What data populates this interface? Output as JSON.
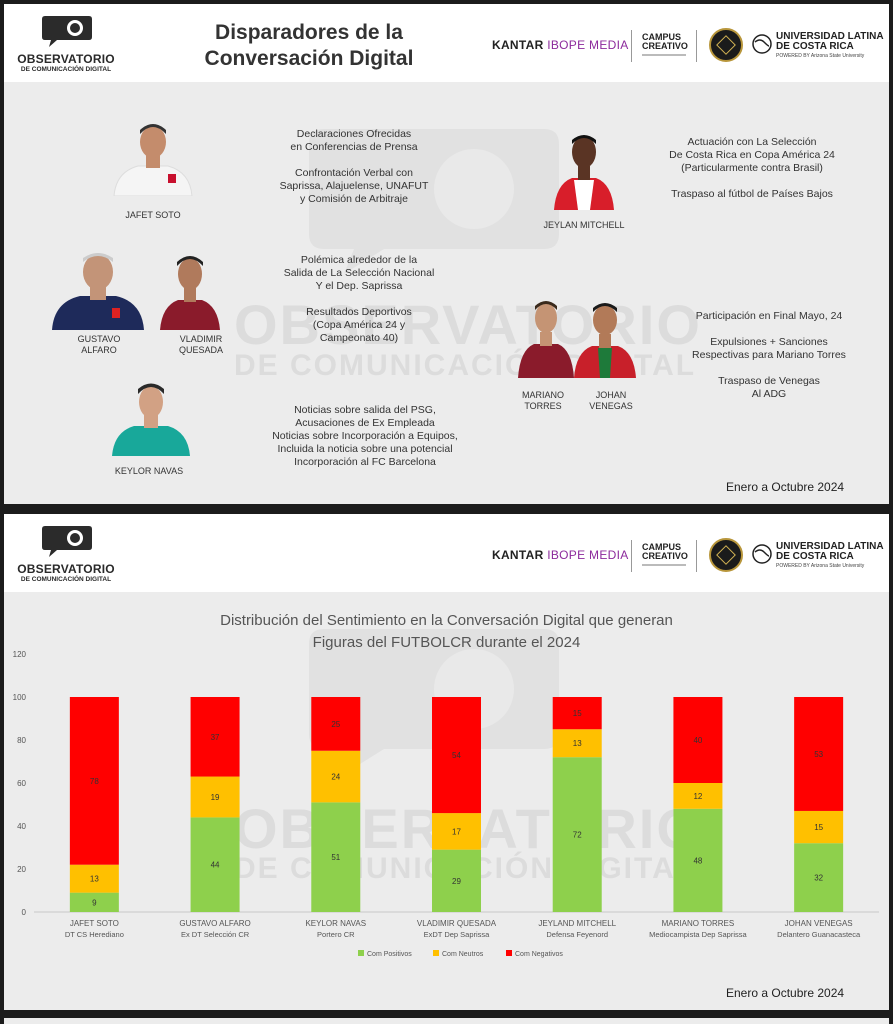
{
  "header": {
    "logo_line1": "OBSERVATORIO",
    "logo_line2": "DE COMUNICACIÓN DIGITAL",
    "title_line1": "Disparadores de la",
    "title_line2": "Conversación Digital",
    "kantar": "KANTAR",
    "ibope": "IBOPE MEDIA",
    "campus_line1": "CAMPUS",
    "campus_line2": "CREATIVO",
    "ulat_line1": "UNIVERSIDAD LATINA",
    "ulat_line2": "DE COSTA RICA",
    "ulat_sub": "POWERED BY Arizona State University"
  },
  "watermark": {
    "line1": "OBSERVATORIO",
    "line2": "DE COMUNICACIÓN DIGITAL"
  },
  "people": {
    "jafet": "JAFET\nSOTO",
    "gustavo": "GUSTAVO\nALFARO",
    "vladimir": "VLADIMIR\nQUESADA",
    "keylor": "KEYLOR\nNAVAS",
    "jeylan": "JEYLAN MITCHELL",
    "mariano": "MARIANO\nTORRES",
    "johan": "JOHAN\nVENEGAS"
  },
  "descriptions": {
    "jafet": "Declaraciones Ofrecidas\nen Conferencias de Prensa\n\nConfrontación Verbal con\nSaprissa, Alajuelense, UNAFUT\ny Comisión de Arbitraje",
    "gustavo_vladimir": "Polémica alrededor de la\nSalida de La Selección Nacional\nY el Dep. Saprissa\n\nResultados Deportivos\n(Copa América 24 y\nCampeonato 40)",
    "keylor": "Noticias sobre salida del PSG,\nAcusaciones de Ex Empleada\nNoticias sobre Incorporación a Equipos,\nIncluida la noticia sobre una potencial\nIncorporación al FC Barcelona",
    "jeylan": "Actuación con La Selección\nDe Costa Rica en Copa América 24\n(Particularmente contra Brasil)\n\nTraspaso al fútbol de Países Bajos",
    "mariano_johan": "Participación en Final Mayo, 24\n\nExpulsiones + Sanciones\nRespectivas para Mariano Torres\n\nTraspaso de Venegas\nAl ADG"
  },
  "period": "Enero a Octubre 2024",
  "chart_title_line1": "Distribución del Sentimiento en la Conversación Digital que generan",
  "chart_title_line2": "Figuras del FUTBOLCR  durante el 2024",
  "colors": {
    "positive": "#8ed04c",
    "neutral": "#ffc000",
    "negative": "#ff0000"
  },
  "chart_data": {
    "type": "bar",
    "stacked": true,
    "ylim": [
      0,
      120
    ],
    "yticks": [
      0,
      20,
      40,
      60,
      80,
      100,
      120
    ],
    "grid": false,
    "legend_position": "bottom",
    "categories": [
      {
        "name": "JAFET SOTO",
        "role": "DT CS Herediano"
      },
      {
        "name": "GUSTAVO ALFARO",
        "role": "Ex DT Selección CR"
      },
      {
        "name": "KEYLOR NAVAS",
        "role": "Portero CR"
      },
      {
        "name": "VLADIMIR QUESADA",
        "role": "ExDT Dep Saprissa"
      },
      {
        "name": "JEYLAND MITCHELL",
        "role": "Defensa Feyenord"
      },
      {
        "name": "MARIANO TORRES",
        "role": "Mediocampista Dep Saprissa"
      },
      {
        "name": "JOHAN VENEGAS",
        "role": "Delantero Guanacasteca"
      }
    ],
    "series": [
      {
        "name": "Com Positivos",
        "color": "#8ed04c",
        "values": [
          9,
          44,
          51,
          29,
          72,
          48,
          32
        ]
      },
      {
        "name": "Com Neutros",
        "color": "#ffc000",
        "values": [
          13,
          19,
          24,
          17,
          13,
          12,
          15
        ]
      },
      {
        "name": "Com Negativos",
        "color": "#ff0000",
        "values": [
          78,
          37,
          25,
          54,
          15,
          40,
          53
        ]
      }
    ]
  }
}
